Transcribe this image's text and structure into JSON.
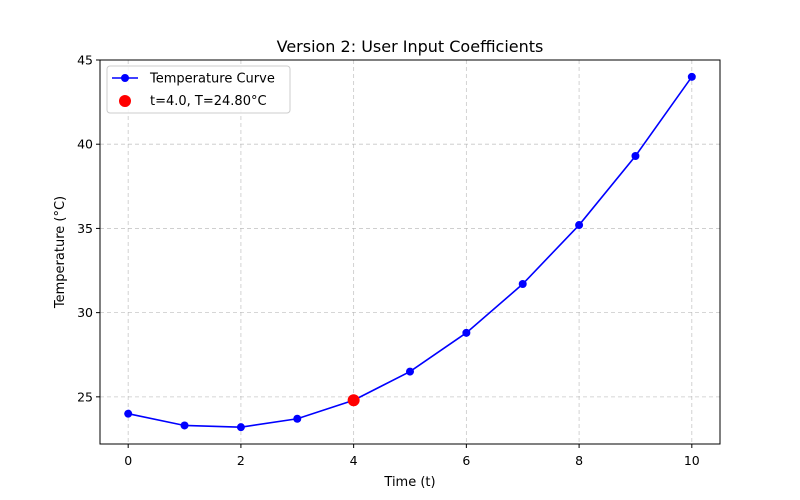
{
  "chart_data": {
    "type": "line",
    "title": "Version 2: User Input Coefficients",
    "xlabel": "Time (t)",
    "ylabel": "Temperature (°C)",
    "xlim": [
      -0.5,
      10.5
    ],
    "ylim": [
      22.2,
      45
    ],
    "xticks": [
      0,
      2,
      4,
      6,
      8,
      10
    ],
    "yticks": [
      25,
      30,
      35,
      40,
      45
    ],
    "grid": true,
    "legend_position": "top-left",
    "series": [
      {
        "name": "Temperature Curve",
        "color": "#0000ff",
        "marker": "circle",
        "x": [
          0,
          1,
          2,
          3,
          4,
          5,
          6,
          7,
          8,
          9,
          10
        ],
        "y": [
          24.0,
          23.3,
          23.2,
          23.7,
          24.8,
          26.5,
          28.8,
          31.7,
          35.2,
          39.3,
          44.0
        ]
      }
    ],
    "highlight": {
      "name": "t=4.0, T=24.80°C",
      "color": "#ff0000",
      "x": 4.0,
      "y": 24.8
    }
  }
}
